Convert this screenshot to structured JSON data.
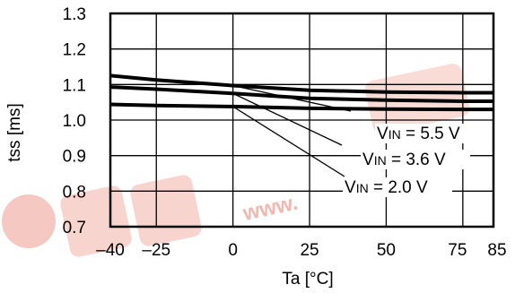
{
  "chart_data": {
    "type": "line",
    "title": "",
    "xlabel": "Ta [°C]",
    "ylabel": "tss [ms]",
    "xlim": [
      -40,
      85
    ],
    "ylim": [
      0.7,
      1.3
    ],
    "grid": true,
    "x_ticks": [
      -40,
      -25,
      0,
      25,
      50,
      75,
      85
    ],
    "x_tick_labels": [
      "–40",
      "–25",
      "0",
      "25",
      "50",
      "75",
      "85"
    ],
    "y_ticks": [
      0.7,
      0.8,
      0.9,
      1.0,
      1.1,
      1.2,
      1.3
    ],
    "y_tick_labels": [
      "0.7",
      "0.8",
      "0.9",
      "1.0",
      "1.1",
      "1.2",
      "1.3"
    ],
    "series": [
      {
        "name": "VIN = 5.5 V",
        "label_parts": [
          "V",
          "IN",
          " = 5.5 V"
        ],
        "color": "#000000",
        "x": [
          -40,
          -25,
          0,
          25,
          50,
          75,
          85
        ],
        "y": [
          1.125,
          1.113,
          1.097,
          1.084,
          1.079,
          1.077,
          1.077
        ]
      },
      {
        "name": "VIN = 3.6 V",
        "label_parts": [
          "V",
          "IN",
          " = 3.6 V"
        ],
        "color": "#000000",
        "x": [
          -40,
          -25,
          0,
          25,
          50,
          75,
          85
        ],
        "y": [
          1.093,
          1.087,
          1.075,
          1.061,
          1.056,
          1.053,
          1.053
        ]
      },
      {
        "name": "VIN = 2.0 V",
        "label_parts": [
          "V",
          "IN",
          " = 2.0 V"
        ],
        "color": "#000000",
        "x": [
          -40,
          -25,
          0,
          25,
          50,
          75,
          85
        ],
        "y": [
          1.044,
          1.041,
          1.038,
          1.033,
          1.031,
          1.03,
          1.03
        ]
      }
    ],
    "annotation_leaders": [
      {
        "series": 0,
        "from_x": 0,
        "to_x": 20
      },
      {
        "series": 1,
        "from_x": 0,
        "to_x": 22
      },
      {
        "series": 2,
        "from_x": 0,
        "to_x": 24
      }
    ],
    "watermark": {
      "text": "www.",
      "color": "#f3b7b0"
    }
  }
}
